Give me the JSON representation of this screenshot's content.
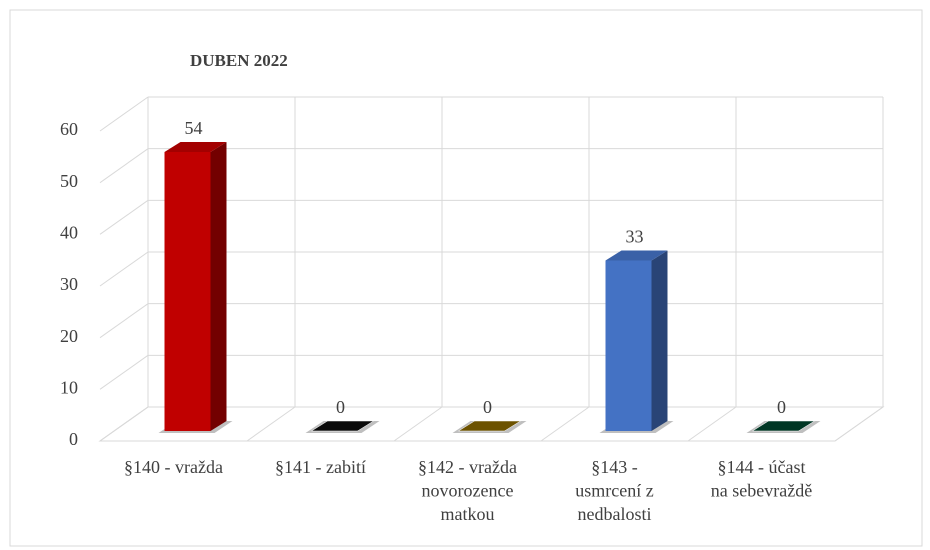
{
  "chart_data": {
    "type": "bar3d",
    "title": "DUBEN 2022",
    "categories": [
      "§140 - vražda",
      "§141 - zabití",
      "§142 - vražda\nnovorozence\nmatkou",
      "§143 -\nusmrcení z\nnedbalosti",
      "§144 - účast\nna sebevraždě"
    ],
    "values": [
      54,
      0,
      0,
      33,
      0
    ],
    "colors": [
      "#c00000",
      "#0d0d0d",
      "#7f6000",
      "#4472c4",
      "#00402a"
    ],
    "ylim": [
      0,
      60
    ],
    "yticks": [
      0,
      10,
      20,
      30,
      40,
      50,
      60
    ],
    "grid": true
  }
}
